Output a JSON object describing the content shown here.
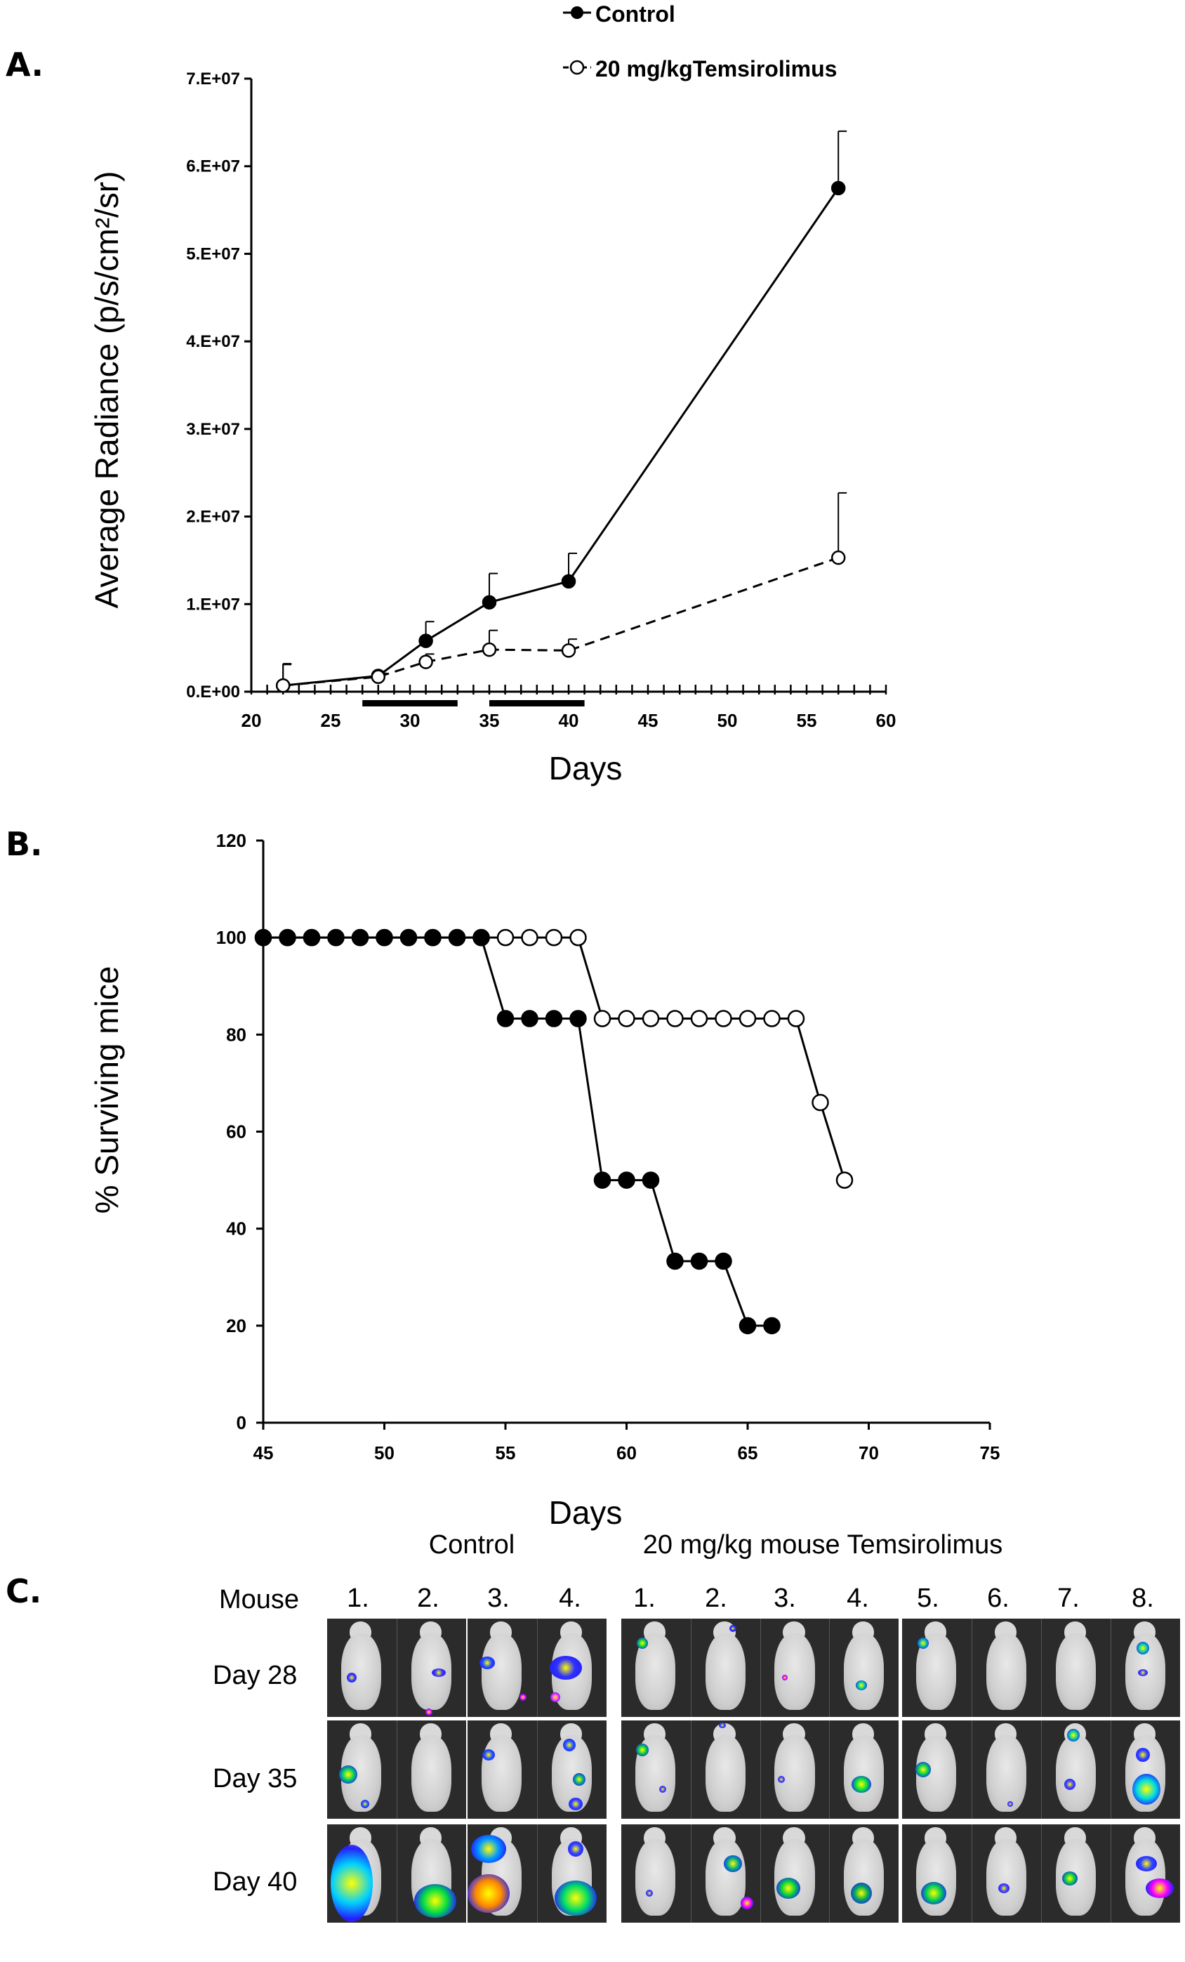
{
  "chart_data": [
    {
      "panel": "A.",
      "type": "line",
      "xlabel": "Days",
      "ylabel": "Average Radiance (p/s/cm²/sr)",
      "xlim": [
        20,
        60
      ],
      "xticks": [
        "20",
        "25",
        "30",
        "35",
        "40",
        "45",
        "50",
        "55",
        "60"
      ],
      "ylim": [
        0,
        70000000
      ],
      "yticks": [
        "0.E+00",
        "1.E+07",
        "2.E+07",
        "3.E+07",
        "4.E+07",
        "5.E+07",
        "6.E+07",
        "7.E+07"
      ],
      "legend": [
        {
          "name": "Control",
          "marker": "filled",
          "line": "solid"
        },
        {
          "name": "20 mg/kgTemsirolimus",
          "marker": "open",
          "line": "dashed"
        }
      ],
      "treatment_bars": [
        [
          27,
          33
        ],
        [
          35,
          41
        ]
      ],
      "series": [
        {
          "name": "Control",
          "x": [
            22,
            28,
            31,
            35,
            40,
            57
          ],
          "values": [
            700000,
            1800000,
            5800000,
            10200000,
            12600000,
            57500000
          ],
          "err": [
            2500000,
            300000,
            2200000,
            3300000,
            3200000,
            6500000
          ]
        },
        {
          "name": "20 mg/kgTemsirolimus",
          "x": [
            22,
            28,
            31,
            35,
            40,
            57
          ],
          "values": [
            700000,
            1700000,
            3400000,
            4800000,
            4700000,
            15300000
          ],
          "err": [
            2400000,
            300000,
            900000,
            2200000,
            1300000,
            7400000
          ]
        }
      ]
    },
    {
      "panel": "B.",
      "type": "line",
      "xlabel": "Days",
      "ylabel": "% Surviving mice",
      "xlim": [
        45,
        75
      ],
      "xticks": [
        "45",
        "50",
        "55",
        "60",
        "65",
        "70",
        "75"
      ],
      "ylim": [
        0,
        120
      ],
      "yticks": [
        "0",
        "20",
        "40",
        "60",
        "80",
        "100",
        "120"
      ],
      "series": [
        {
          "name": "Control",
          "marker": "filled",
          "x": [
            45,
            46,
            47,
            48,
            49,
            50,
            51,
            52,
            53,
            54,
            55,
            56,
            57,
            58,
            59,
            60,
            61,
            62,
            63,
            64,
            65,
            66
          ],
          "values": [
            100,
            100,
            100,
            100,
            100,
            100,
            100,
            100,
            100,
            100,
            83.3,
            83.3,
            83.3,
            83.3,
            50,
            50,
            50,
            33.3,
            33.3,
            33.3,
            20,
            20
          ]
        },
        {
          "name": "20 mg/kg Temsirolimus",
          "marker": "open",
          "x": [
            45,
            46,
            47,
            48,
            49,
            50,
            51,
            52,
            53,
            54,
            55,
            56,
            57,
            58,
            59,
            60,
            61,
            62,
            63,
            64,
            65,
            66,
            67,
            68,
            69
          ],
          "values": [
            100,
            100,
            100,
            100,
            100,
            100,
            100,
            100,
            100,
            100,
            100,
            100,
            100,
            100,
            83.3,
            83.3,
            83.3,
            83.3,
            83.3,
            83.3,
            83.3,
            83.3,
            83.3,
            66,
            50
          ]
        }
      ]
    }
  ],
  "panels": {
    "a": "A.",
    "b": "B.",
    "c": "C."
  },
  "imaging": {
    "group_control": "Control",
    "group_treated": "20 mg/kg mouse Temsirolimus",
    "mouse_label": "Mouse",
    "control_mice": [
      "1.",
      "2.",
      "3.",
      "4."
    ],
    "treated_mice": [
      "1.",
      "2.",
      "3.",
      "4.",
      "5.",
      "6.",
      "7.",
      "8."
    ],
    "days": [
      "Day 28",
      "Day 35",
      "Day 40"
    ]
  },
  "colors": {
    "line": "#000000",
    "open_fill": "#ffffff",
    "image_bg": "#2b2b2b"
  }
}
